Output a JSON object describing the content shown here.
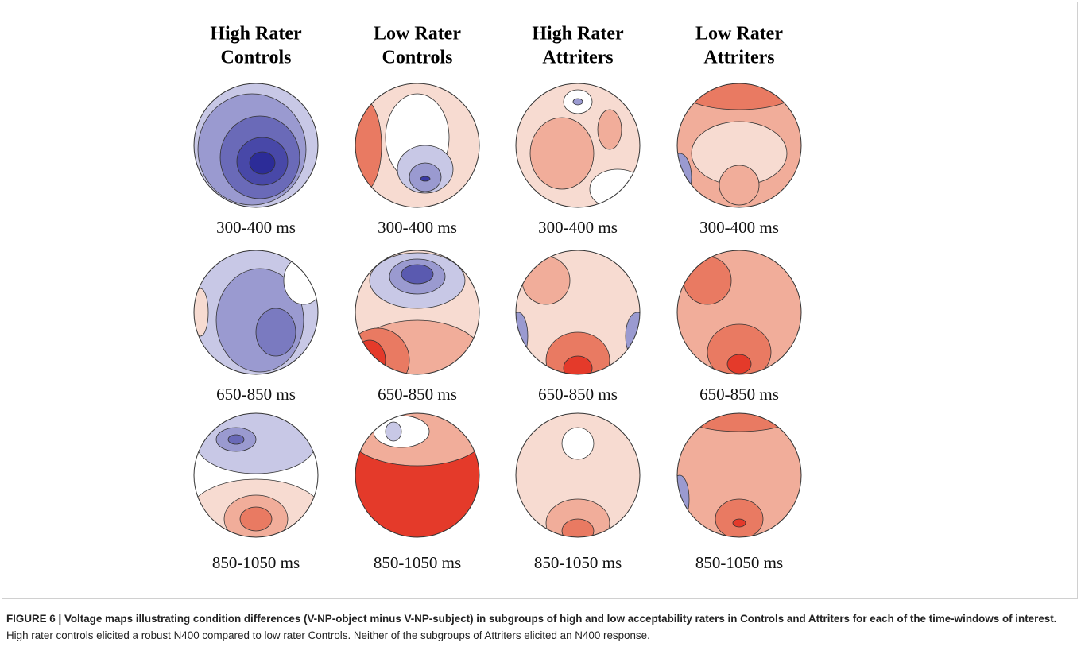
{
  "columns": [
    {
      "lines": [
        "High Rater",
        "Controls"
      ]
    },
    {
      "lines": [
        "Low Rater",
        "Controls"
      ]
    },
    {
      "lines": [
        "High Rater",
        "Attriters"
      ]
    },
    {
      "lines": [
        "Low Rater",
        "Attriters"
      ]
    }
  ],
  "maps": [
    [
      "300-400 ms",
      "300-400 ms",
      "300-400 ms",
      "300-400 ms"
    ],
    [
      "650-850 ms",
      "650-850 ms",
      "650-850 ms",
      "650-850 ms"
    ],
    [
      "850-1050 ms",
      "850-1050 ms",
      "850-1050 ms",
      "850-1050 ms"
    ]
  ],
  "caption": {
    "bold": "FIGURE 6 | Voltage maps illustrating condition differences (V-NP-object minus V-NP-subject) in subgroups of high and low acceptability raters in Controls and Attriters for each of the time-windows of interest.",
    "text": "High rater controls elicited a robust N400 compared to low rater Controls. Neither of the subgroups of Attriters elicited an N400 response."
  }
}
